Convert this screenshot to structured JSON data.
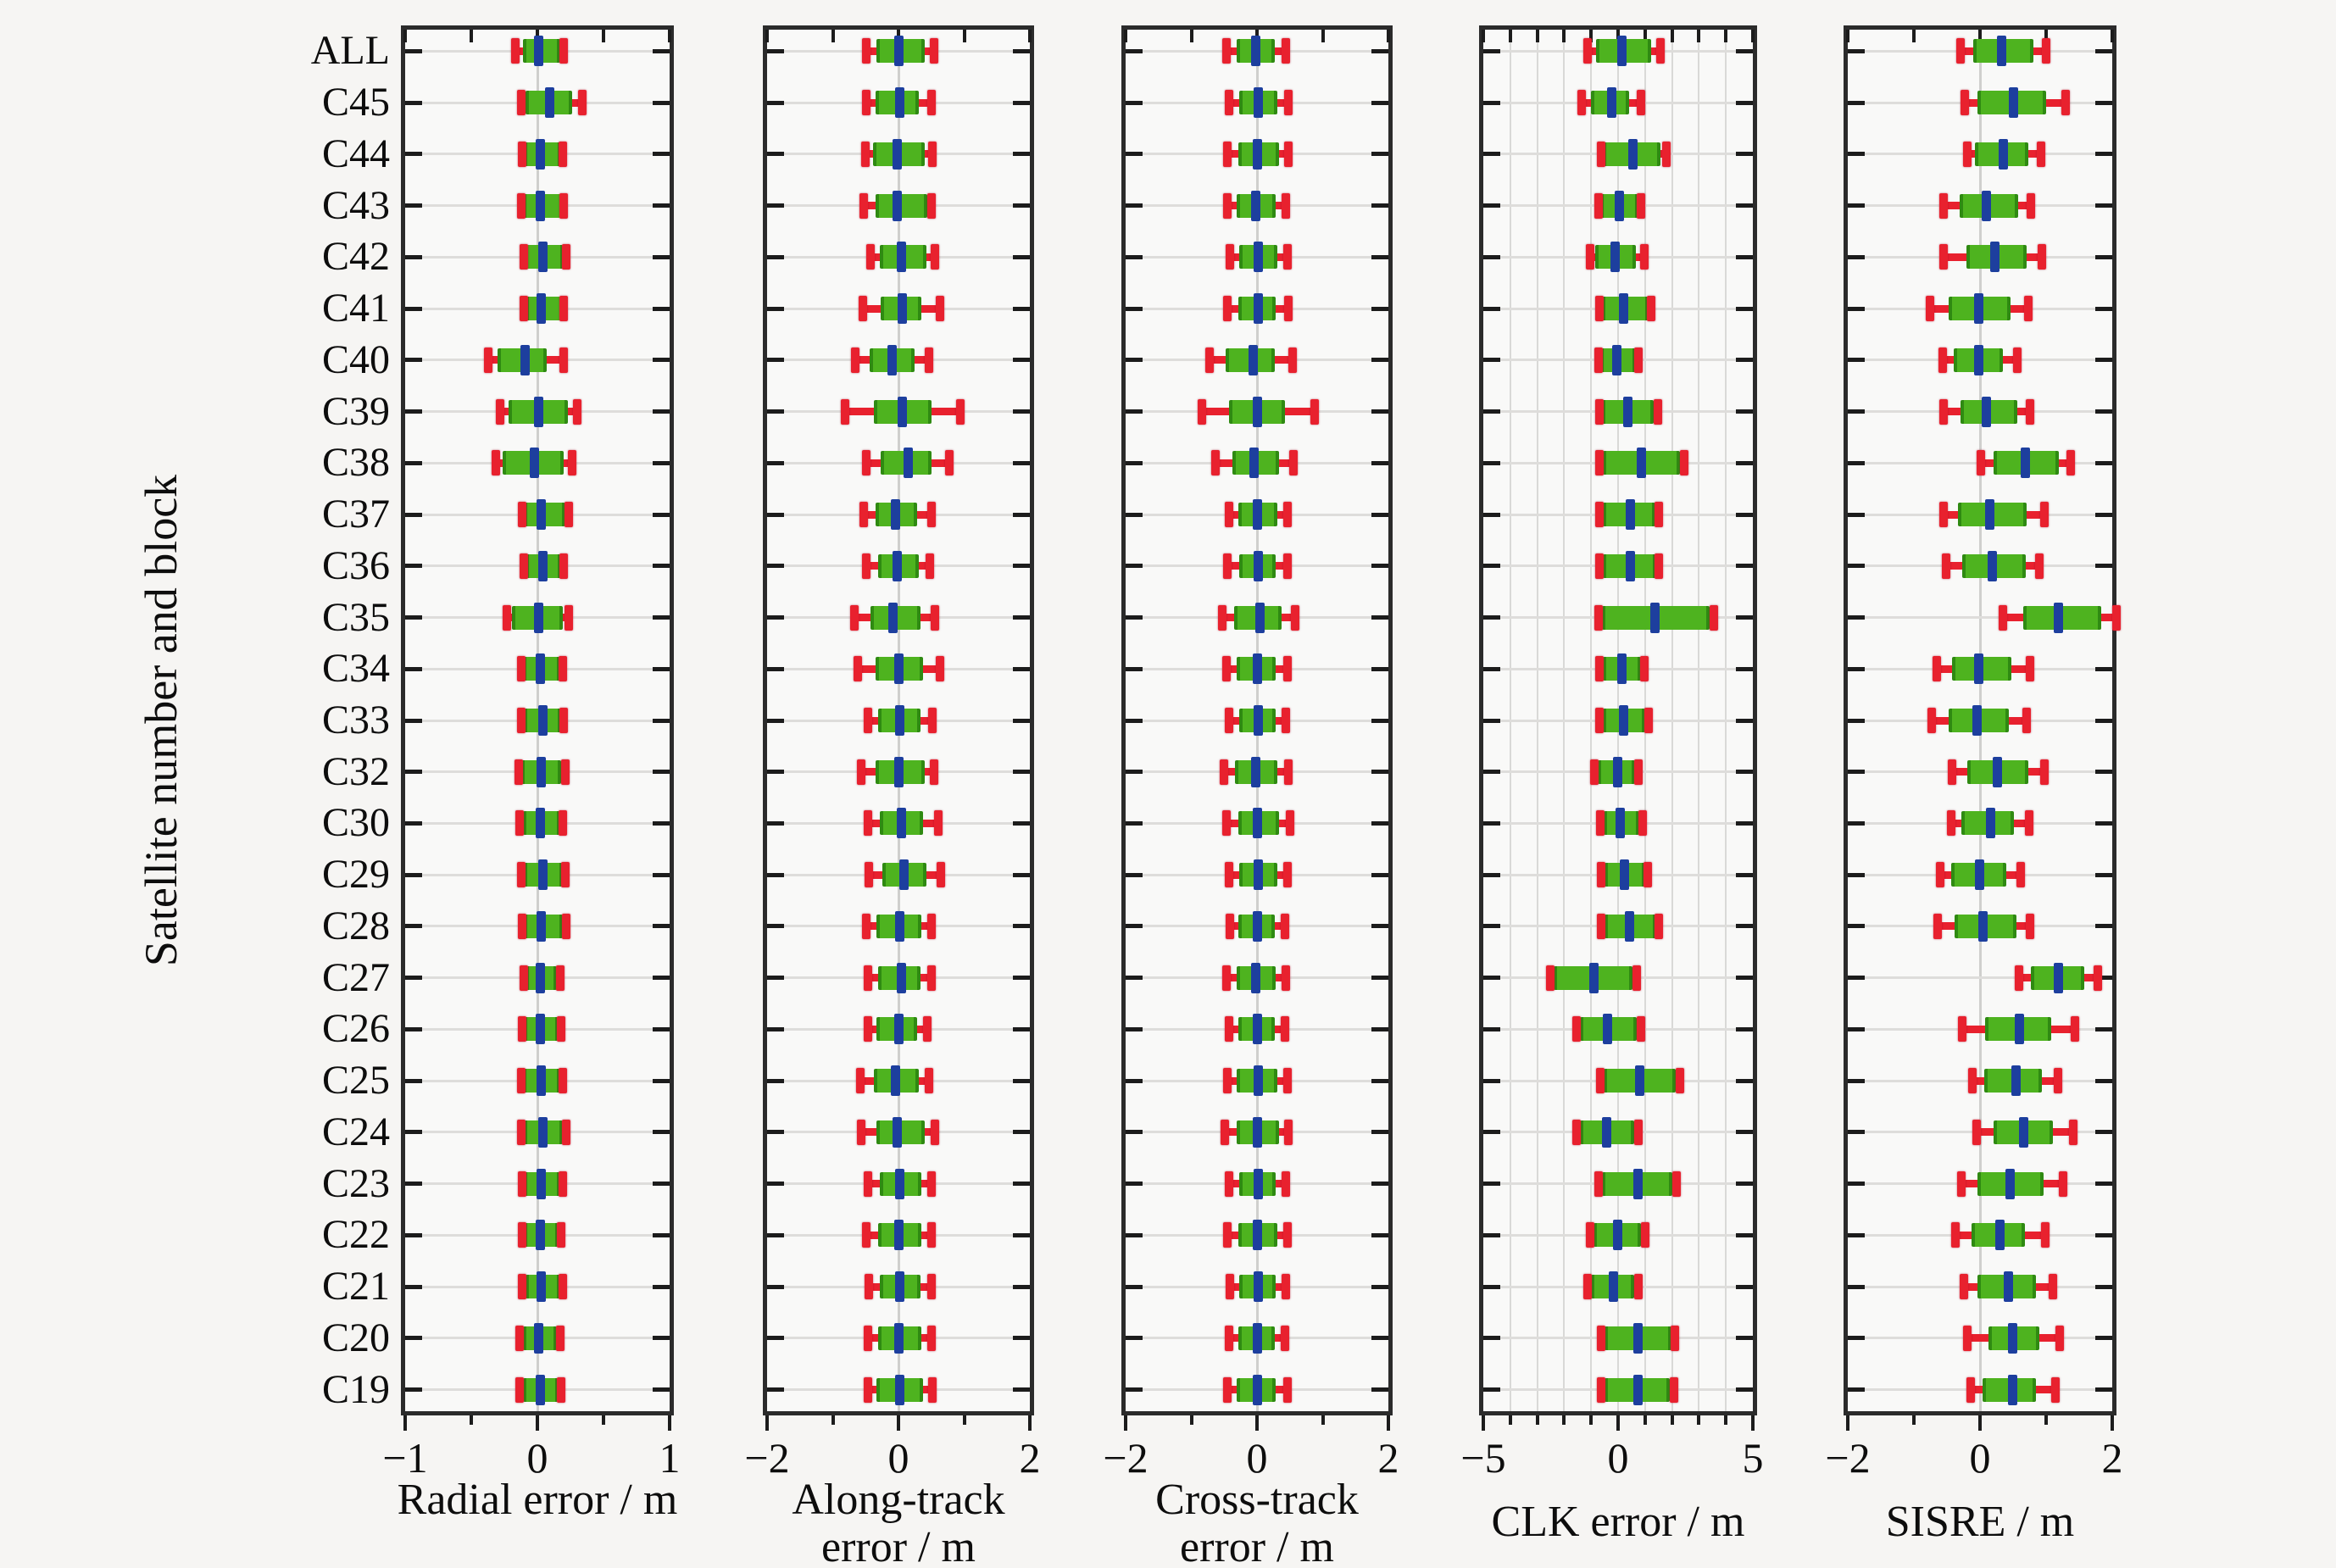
{
  "figure": {
    "y_axis_title": "Satellite number and block",
    "categories": [
      "ALL",
      "C45",
      "C44",
      "C43",
      "C42",
      "C41",
      "C40",
      "C39",
      "C38",
      "C37",
      "C36",
      "C35",
      "C34",
      "C33",
      "C32",
      "C30",
      "C29",
      "C28",
      "C27",
      "C26",
      "C25",
      "C24",
      "C23",
      "C22",
      "C21",
      "C20",
      "C19"
    ],
    "colors": {
      "whisker": "#e8212e",
      "box_fill": "#4eb31f",
      "box_edge": "#2f8a12",
      "median": "#1d3f9e",
      "spine": "#2b2b2b",
      "gridline": "#dedddb",
      "background": "#f6f5f3"
    }
  },
  "chart_data": [
    {
      "type": "boxplot-horizontal",
      "panel_id": "radial",
      "xlabel_lines": [
        "Radial error / m"
      ],
      "xlim": [
        -1,
        1
      ],
      "xticks": [
        -1,
        0,
        1
      ],
      "xtick_labels": [
        "−1",
        "0",
        "1"
      ],
      "minor_tick_step": 0.5,
      "grid_step": null,
      "legend": "rows are [whisker_low, q1, median, q3, whisker_high] in metres, category order matches figure.categories",
      "rows": [
        [
          -0.17,
          -0.11,
          0.01,
          0.17,
          0.2
        ],
        [
          -0.13,
          -0.09,
          0.09,
          0.26,
          0.34
        ],
        [
          -0.12,
          -0.1,
          0.02,
          0.18,
          0.19
        ],
        [
          -0.13,
          -0.11,
          0.02,
          0.19,
          0.2
        ],
        [
          -0.11,
          -0.1,
          0.04,
          0.2,
          0.22
        ],
        [
          -0.11,
          -0.09,
          0.03,
          0.19,
          0.2
        ],
        [
          -0.38,
          -0.3,
          -0.09,
          0.07,
          0.2
        ],
        [
          -0.29,
          -0.22,
          0.01,
          0.23,
          0.3
        ],
        [
          -0.32,
          -0.26,
          -0.02,
          0.2,
          0.26
        ],
        [
          -0.12,
          -0.1,
          0.03,
          0.21,
          0.24
        ],
        [
          -0.11,
          -0.09,
          0.04,
          0.18,
          0.2
        ],
        [
          -0.24,
          -0.19,
          0.01,
          0.19,
          0.24
        ],
        [
          -0.13,
          -0.11,
          0.02,
          0.17,
          0.19
        ],
        [
          -0.13,
          -0.1,
          0.04,
          0.18,
          0.2
        ],
        [
          -0.15,
          -0.12,
          0.03,
          0.18,
          0.21
        ],
        [
          -0.14,
          -0.11,
          0.02,
          0.17,
          0.19
        ],
        [
          -0.13,
          -0.1,
          0.04,
          0.19,
          0.21
        ],
        [
          -0.12,
          -0.1,
          0.03,
          0.19,
          0.22
        ],
        [
          -0.11,
          -0.09,
          0.02,
          0.15,
          0.17
        ],
        [
          -0.12,
          -0.1,
          0.02,
          0.16,
          0.18
        ],
        [
          -0.13,
          -0.11,
          0.03,
          0.17,
          0.19
        ],
        [
          -0.13,
          -0.1,
          0.04,
          0.19,
          0.22
        ],
        [
          -0.12,
          -0.1,
          0.03,
          0.17,
          0.19
        ],
        [
          -0.12,
          -0.1,
          0.02,
          0.16,
          0.18
        ],
        [
          -0.12,
          -0.09,
          0.03,
          0.17,
          0.19
        ],
        [
          -0.14,
          -0.11,
          0.01,
          0.15,
          0.17
        ],
        [
          -0.14,
          -0.11,
          0.02,
          0.16,
          0.18
        ]
      ]
    },
    {
      "type": "boxplot-horizontal",
      "panel_id": "along-track",
      "xlabel_lines": [
        "Along-track",
        "error / m"
      ],
      "xlim": [
        -2,
        2
      ],
      "xticks": [
        -2,
        0,
        2
      ],
      "xtick_labels": [
        "−2",
        "0",
        "2"
      ],
      "minor_tick_step": 1,
      "grid_step": null,
      "rows": [
        [
          -0.5,
          -0.33,
          0.0,
          0.4,
          0.54
        ],
        [
          -0.5,
          -0.35,
          0.02,
          0.31,
          0.5
        ],
        [
          -0.52,
          -0.39,
          -0.02,
          0.4,
          0.52
        ],
        [
          -0.54,
          -0.35,
          -0.02,
          0.44,
          0.5
        ],
        [
          -0.44,
          -0.29,
          0.04,
          0.42,
          0.56
        ],
        [
          -0.56,
          -0.27,
          0.06,
          0.35,
          0.63
        ],
        [
          -0.67,
          -0.44,
          -0.1,
          0.25,
          0.46
        ],
        [
          -0.83,
          -0.38,
          0.06,
          0.5,
          0.94
        ],
        [
          -0.5,
          -0.27,
          0.15,
          0.5,
          0.77
        ],
        [
          -0.54,
          -0.35,
          -0.04,
          0.29,
          0.5
        ],
        [
          -0.5,
          -0.31,
          -0.02,
          0.31,
          0.48
        ],
        [
          -0.69,
          -0.42,
          -0.08,
          0.33,
          0.56
        ],
        [
          -0.63,
          -0.35,
          0.0,
          0.37,
          0.63
        ],
        [
          -0.48,
          -0.31,
          0.02,
          0.33,
          0.52
        ],
        [
          -0.58,
          -0.35,
          0.0,
          0.4,
          0.54
        ],
        [
          -0.48,
          -0.29,
          0.04,
          0.37,
          0.6
        ],
        [
          -0.46,
          -0.25,
          0.08,
          0.42,
          0.65
        ],
        [
          -0.5,
          -0.33,
          0.02,
          0.35,
          0.5
        ],
        [
          -0.48,
          -0.31,
          0.04,
          0.33,
          0.5
        ],
        [
          -0.48,
          -0.33,
          0.0,
          0.29,
          0.44
        ],
        [
          -0.6,
          -0.38,
          -0.04,
          0.31,
          0.46
        ],
        [
          -0.58,
          -0.33,
          -0.02,
          0.4,
          0.56
        ],
        [
          -0.48,
          -0.29,
          0.02,
          0.35,
          0.5
        ],
        [
          -0.5,
          -0.31,
          0.0,
          0.35,
          0.5
        ],
        [
          -0.46,
          -0.29,
          0.02,
          0.33,
          0.5
        ],
        [
          -0.48,
          -0.31,
          0.0,
          0.35,
          0.5
        ],
        [
          -0.48,
          -0.33,
          0.02,
          0.37,
          0.52
        ]
      ]
    },
    {
      "type": "boxplot-horizontal",
      "panel_id": "cross-track",
      "xlabel_lines": [
        "Cross-track",
        "error / m"
      ],
      "xlim": [
        -2,
        2
      ],
      "xticks": [
        -2,
        0,
        2
      ],
      "xtick_labels": [
        "−2",
        "0",
        "2"
      ],
      "minor_tick_step": 1,
      "grid_step": null,
      "rows": [
        [
          -0.48,
          -0.31,
          -0.02,
          0.27,
          0.44
        ],
        [
          -0.44,
          -0.27,
          0.02,
          0.31,
          0.48
        ],
        [
          -0.46,
          -0.29,
          0.0,
          0.33,
          0.48
        ],
        [
          -0.46,
          -0.31,
          -0.02,
          0.29,
          0.44
        ],
        [
          -0.42,
          -0.27,
          0.02,
          0.31,
          0.46
        ],
        [
          -0.46,
          -0.29,
          0.02,
          0.29,
          0.48
        ],
        [
          -0.73,
          -0.48,
          -0.06,
          0.27,
          0.54
        ],
        [
          -0.85,
          -0.42,
          0.0,
          0.42,
          0.88
        ],
        [
          -0.65,
          -0.38,
          -0.04,
          0.33,
          0.56
        ],
        [
          -0.44,
          -0.29,
          0.0,
          0.31,
          0.46
        ],
        [
          -0.46,
          -0.27,
          0.02,
          0.29,
          0.46
        ],
        [
          -0.54,
          -0.35,
          0.04,
          0.37,
          0.58
        ],
        [
          -0.48,
          -0.31,
          0.0,
          0.29,
          0.46
        ],
        [
          -0.44,
          -0.27,
          0.02,
          0.29,
          0.44
        ],
        [
          -0.52,
          -0.33,
          -0.02,
          0.31,
          0.48
        ],
        [
          -0.48,
          -0.29,
          0.0,
          0.33,
          0.5
        ],
        [
          -0.44,
          -0.27,
          0.02,
          0.31,
          0.46
        ],
        [
          -0.42,
          -0.29,
          0.0,
          0.27,
          0.42
        ],
        [
          -0.48,
          -0.31,
          -0.02,
          0.29,
          0.44
        ],
        [
          -0.44,
          -0.29,
          0.0,
          0.27,
          0.42
        ],
        [
          -0.46,
          -0.31,
          0.02,
          0.31,
          0.46
        ],
        [
          -0.5,
          -0.31,
          0.0,
          0.33,
          0.48
        ],
        [
          -0.44,
          -0.27,
          0.02,
          0.29,
          0.44
        ],
        [
          -0.46,
          -0.29,
          0.0,
          0.31,
          0.46
        ],
        [
          -0.42,
          -0.27,
          0.02,
          0.29,
          0.44
        ],
        [
          -0.44,
          -0.29,
          0.0,
          0.27,
          0.42
        ],
        [
          -0.46,
          -0.31,
          0.0,
          0.29,
          0.46
        ]
      ]
    },
    {
      "type": "boxplot-horizontal",
      "panel_id": "clk",
      "xlabel_lines": [
        "CLK error / m"
      ],
      "xlim": [
        -5,
        5
      ],
      "xticks": [
        -5,
        0,
        5
      ],
      "xtick_labels": [
        "−5",
        "0",
        "5"
      ],
      "minor_tick_step": 1,
      "grid_step": 1,
      "rows": [
        [
          -1.17,
          -0.81,
          0.15,
          1.22,
          1.57
        ],
        [
          -1.37,
          -1.02,
          -0.25,
          0.41,
          0.86
        ],
        [
          -0.66,
          -0.56,
          0.56,
          1.57,
          1.78
        ],
        [
          -0.76,
          -0.66,
          0.05,
          0.76,
          0.86
        ],
        [
          -1.07,
          -0.86,
          -0.1,
          0.66,
          0.96
        ],
        [
          -0.71,
          -0.61,
          0.2,
          1.12,
          1.22
        ],
        [
          -0.76,
          -0.66,
          -0.05,
          0.66,
          0.76
        ],
        [
          -0.71,
          -0.61,
          0.36,
          1.32,
          1.47
        ],
        [
          -0.71,
          -0.56,
          0.86,
          2.29,
          2.44
        ],
        [
          -0.71,
          -0.56,
          0.46,
          1.37,
          1.52
        ],
        [
          -0.71,
          -0.56,
          0.46,
          1.42,
          1.52
        ],
        [
          -0.76,
          -0.61,
          1.37,
          3.4,
          3.55
        ],
        [
          -0.71,
          -0.56,
          0.15,
          0.86,
          0.96
        ],
        [
          -0.71,
          -0.56,
          0.2,
          1.02,
          1.12
        ],
        [
          -0.9,
          -0.75,
          -0.03,
          0.64,
          0.74
        ],
        [
          -0.7,
          -0.55,
          0.07,
          0.8,
          0.9
        ],
        [
          -0.65,
          -0.5,
          0.23,
          1.0,
          1.1
        ],
        [
          -0.65,
          -0.5,
          0.43,
          1.4,
          1.5
        ],
        [
          -2.54,
          -2.39,
          -0.9,
          0.53,
          0.69
        ],
        [
          -1.57,
          -1.42,
          -0.39,
          0.69,
          0.84
        ],
        [
          -0.7,
          -0.55,
          0.79,
          2.13,
          2.28
        ],
        [
          -1.57,
          -1.42,
          -0.44,
          0.59,
          0.74
        ],
        [
          -0.75,
          -0.6,
          0.74,
          2.02,
          2.17
        ],
        [
          -1.06,
          -0.91,
          -0.03,
          0.85,
          1.0
        ],
        [
          -1.16,
          -1.01,
          -0.18,
          0.59,
          0.74
        ],
        [
          -0.65,
          -0.5,
          0.74,
          1.97,
          2.12
        ],
        [
          -0.65,
          -0.5,
          0.74,
          1.92,
          2.07
        ]
      ]
    },
    {
      "type": "boxplot-horizontal",
      "panel_id": "sisre",
      "xlabel_lines": [
        "SISRE / m"
      ],
      "xlim": [
        -2,
        2
      ],
      "xticks": [
        -2,
        0,
        2
      ],
      "xtick_labels": [
        "−2",
        "0",
        "2"
      ],
      "minor_tick_step": 1,
      "grid_step": null,
      "rows": [
        [
          -0.31,
          -0.1,
          0.33,
          0.81,
          1.0
        ],
        [
          -0.25,
          -0.04,
          0.5,
          1.0,
          1.29
        ],
        [
          -0.21,
          -0.08,
          0.35,
          0.73,
          0.92
        ],
        [
          -0.56,
          -0.31,
          0.1,
          0.58,
          0.77
        ],
        [
          -0.56,
          -0.21,
          0.23,
          0.71,
          0.94
        ],
        [
          -0.77,
          -0.48,
          -0.02,
          0.46,
          0.73
        ],
        [
          -0.58,
          -0.4,
          -0.02,
          0.35,
          0.56
        ],
        [
          -0.56,
          -0.29,
          0.1,
          0.56,
          0.75
        ],
        [
          0.0,
          0.21,
          0.69,
          1.19,
          1.37
        ],
        [
          -0.56,
          -0.33,
          0.15,
          0.71,
          0.98
        ],
        [
          -0.52,
          -0.27,
          0.19,
          0.69,
          0.9
        ],
        [
          0.33,
          0.65,
          1.19,
          1.83,
          2.06
        ],
        [
          -0.67,
          -0.42,
          -0.02,
          0.48,
          0.75
        ],
        [
          -0.75,
          -0.48,
          -0.04,
          0.44,
          0.71
        ],
        [
          -0.43,
          -0.19,
          0.26,
          0.73,
          0.97
        ],
        [
          -0.45,
          -0.28,
          0.16,
          0.51,
          0.74
        ],
        [
          -0.61,
          -0.44,
          -0.01,
          0.4,
          0.62
        ],
        [
          -0.65,
          -0.38,
          0.05,
          0.55,
          0.76
        ],
        [
          0.58,
          0.77,
          1.18,
          1.58,
          1.78
        ],
        [
          -0.28,
          0.08,
          0.6,
          1.08,
          1.43
        ],
        [
          -0.13,
          0.06,
          0.55,
          0.94,
          1.18
        ],
        [
          -0.07,
          0.21,
          0.66,
          1.1,
          1.41
        ],
        [
          -0.3,
          -0.04,
          0.45,
          0.96,
          1.26
        ],
        [
          -0.38,
          -0.13,
          0.3,
          0.68,
          0.99
        ],
        [
          -0.26,
          -0.04,
          0.43,
          0.85,
          1.1
        ],
        [
          -0.2,
          0.13,
          0.49,
          0.9,
          1.2
        ],
        [
          -0.15,
          0.04,
          0.49,
          0.85,
          1.14
        ]
      ]
    }
  ]
}
